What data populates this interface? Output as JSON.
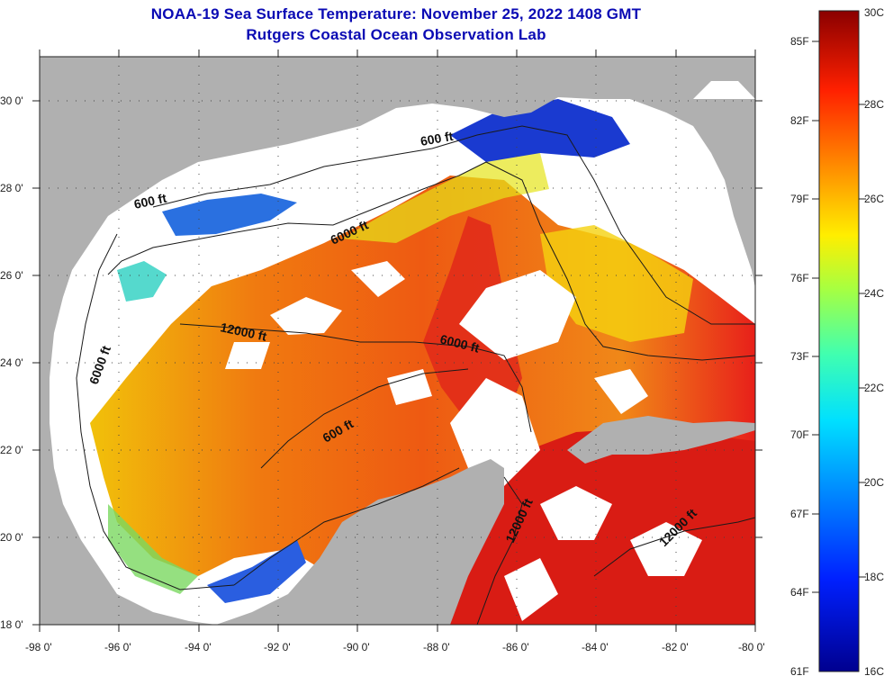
{
  "title": {
    "line1": "NOAA-19 Sea Surface Temperature:  November 25, 2022 1408 GMT",
    "line2": "Rutgers Coastal Ocean Observation Lab"
  },
  "map": {
    "lon_range": [
      -98,
      -80
    ],
    "lat_range": [
      18,
      31
    ],
    "lon_ticks": [
      "-98 0'",
      "-96 0'",
      "-94 0'",
      "-92 0'",
      "-90 0'",
      "-88 0'",
      "-86 0'",
      "-84 0'",
      "-82 0'",
      "-80 0'"
    ],
    "lat_ticks": [
      "30 0'",
      "28 0'",
      "26 0'",
      "24 0'",
      "22 0'",
      "20 0'",
      "18 0'"
    ],
    "contour_labels": [
      "600 ft",
      "600 ft",
      "6000 ft",
      "12000 ft",
      "6000 ft",
      "6000 ft",
      "600 ft",
      "12000 ft",
      "12000 ft"
    ],
    "colors": {
      "land": "#b0b0b0",
      "cloud": "#ffffff",
      "frame": "#222222"
    }
  },
  "colorbar": {
    "range_c": [
      16,
      30
    ],
    "fahrenheit_labels": [
      "85F",
      "82F",
      "79F",
      "76F",
      "73F",
      "70F",
      "67F",
      "64F",
      "61F"
    ],
    "celsius_labels": [
      "30C",
      "28C",
      "26C",
      "24C",
      "22C",
      "20C",
      "18C",
      "16C"
    ]
  }
}
